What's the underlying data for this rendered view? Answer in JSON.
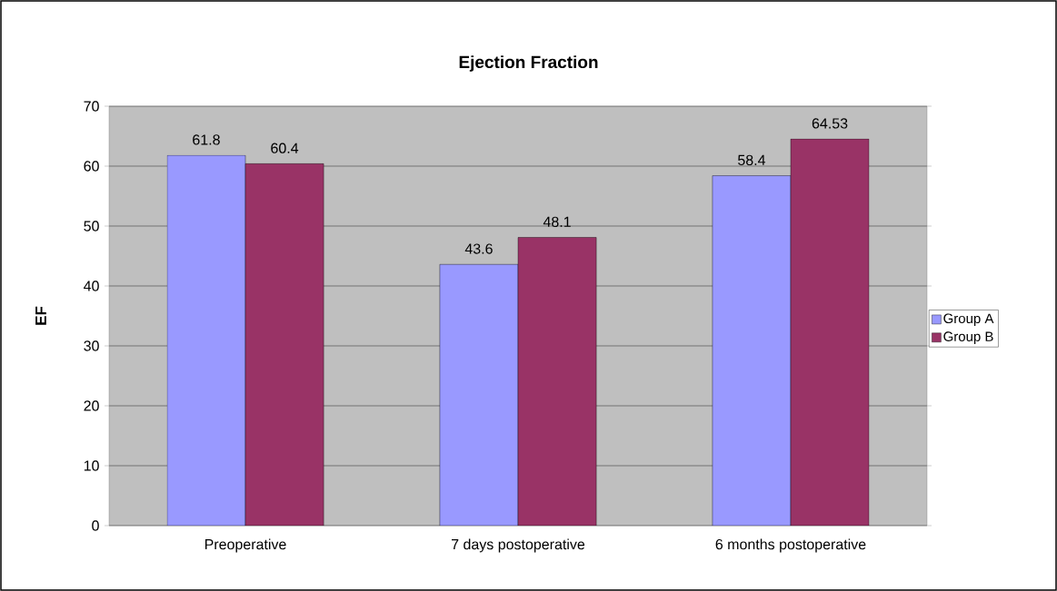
{
  "chart_data": {
    "type": "bar",
    "title": "Ejection Fraction",
    "ylabel": "EF",
    "categories": [
      "Preoperative",
      "7 days postoperative",
      "6 months postoperative"
    ],
    "series": [
      {
        "name": "Group A",
        "color": "#9999ff",
        "values": [
          61.8,
          43.6,
          58.4
        ]
      },
      {
        "name": "Group B",
        "color": "#993366",
        "values": [
          60.4,
          48.1,
          64.53
        ]
      }
    ],
    "ylim": [
      0,
      70
    ],
    "yticks": [
      0,
      10,
      20,
      30,
      40,
      50,
      60,
      70
    ],
    "grid": "y",
    "legend": "right",
    "data_labels": true
  }
}
